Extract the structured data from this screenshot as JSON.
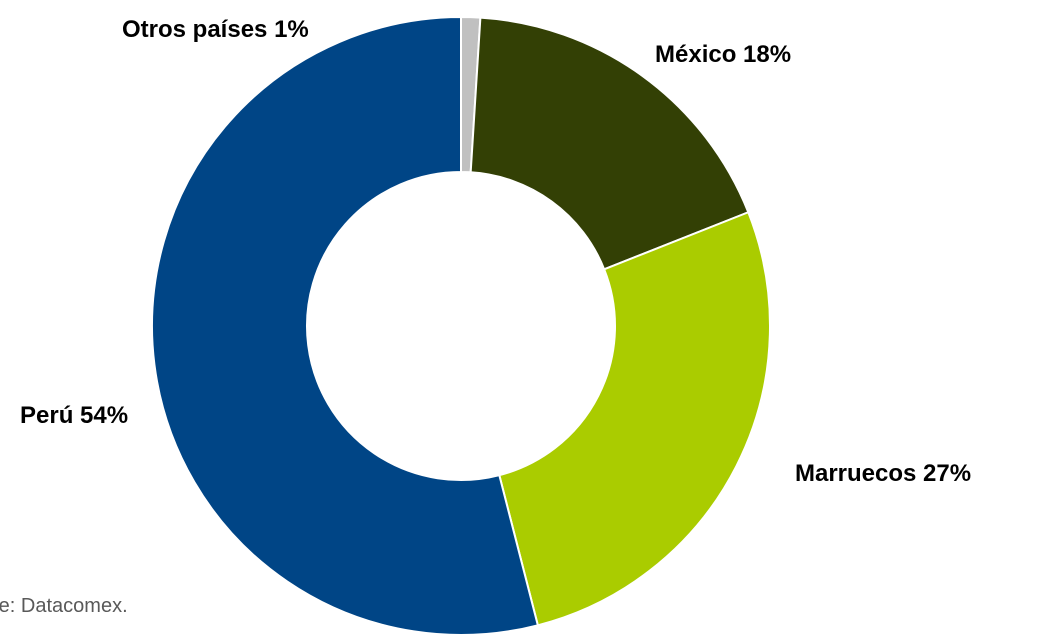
{
  "chart_data": {
    "type": "pie",
    "variant": "donut",
    "slices": [
      {
        "label": "Otros países",
        "value": 1,
        "color": "#C0C0C0"
      },
      {
        "label": "México",
        "value": 18,
        "color": "#334005"
      },
      {
        "label": "Marruecos",
        "value": 27,
        "color": "#AACC00"
      },
      {
        "label": "Perú",
        "value": 54,
        "color": "#004586"
      }
    ],
    "data_labels": [
      "Otros países 1%",
      "México 18%",
      "Marruecos 27%",
      "Perú 54%"
    ],
    "start": "top",
    "direction": "clockwise",
    "legend": "none"
  },
  "source_note": "nte: Datacomex."
}
